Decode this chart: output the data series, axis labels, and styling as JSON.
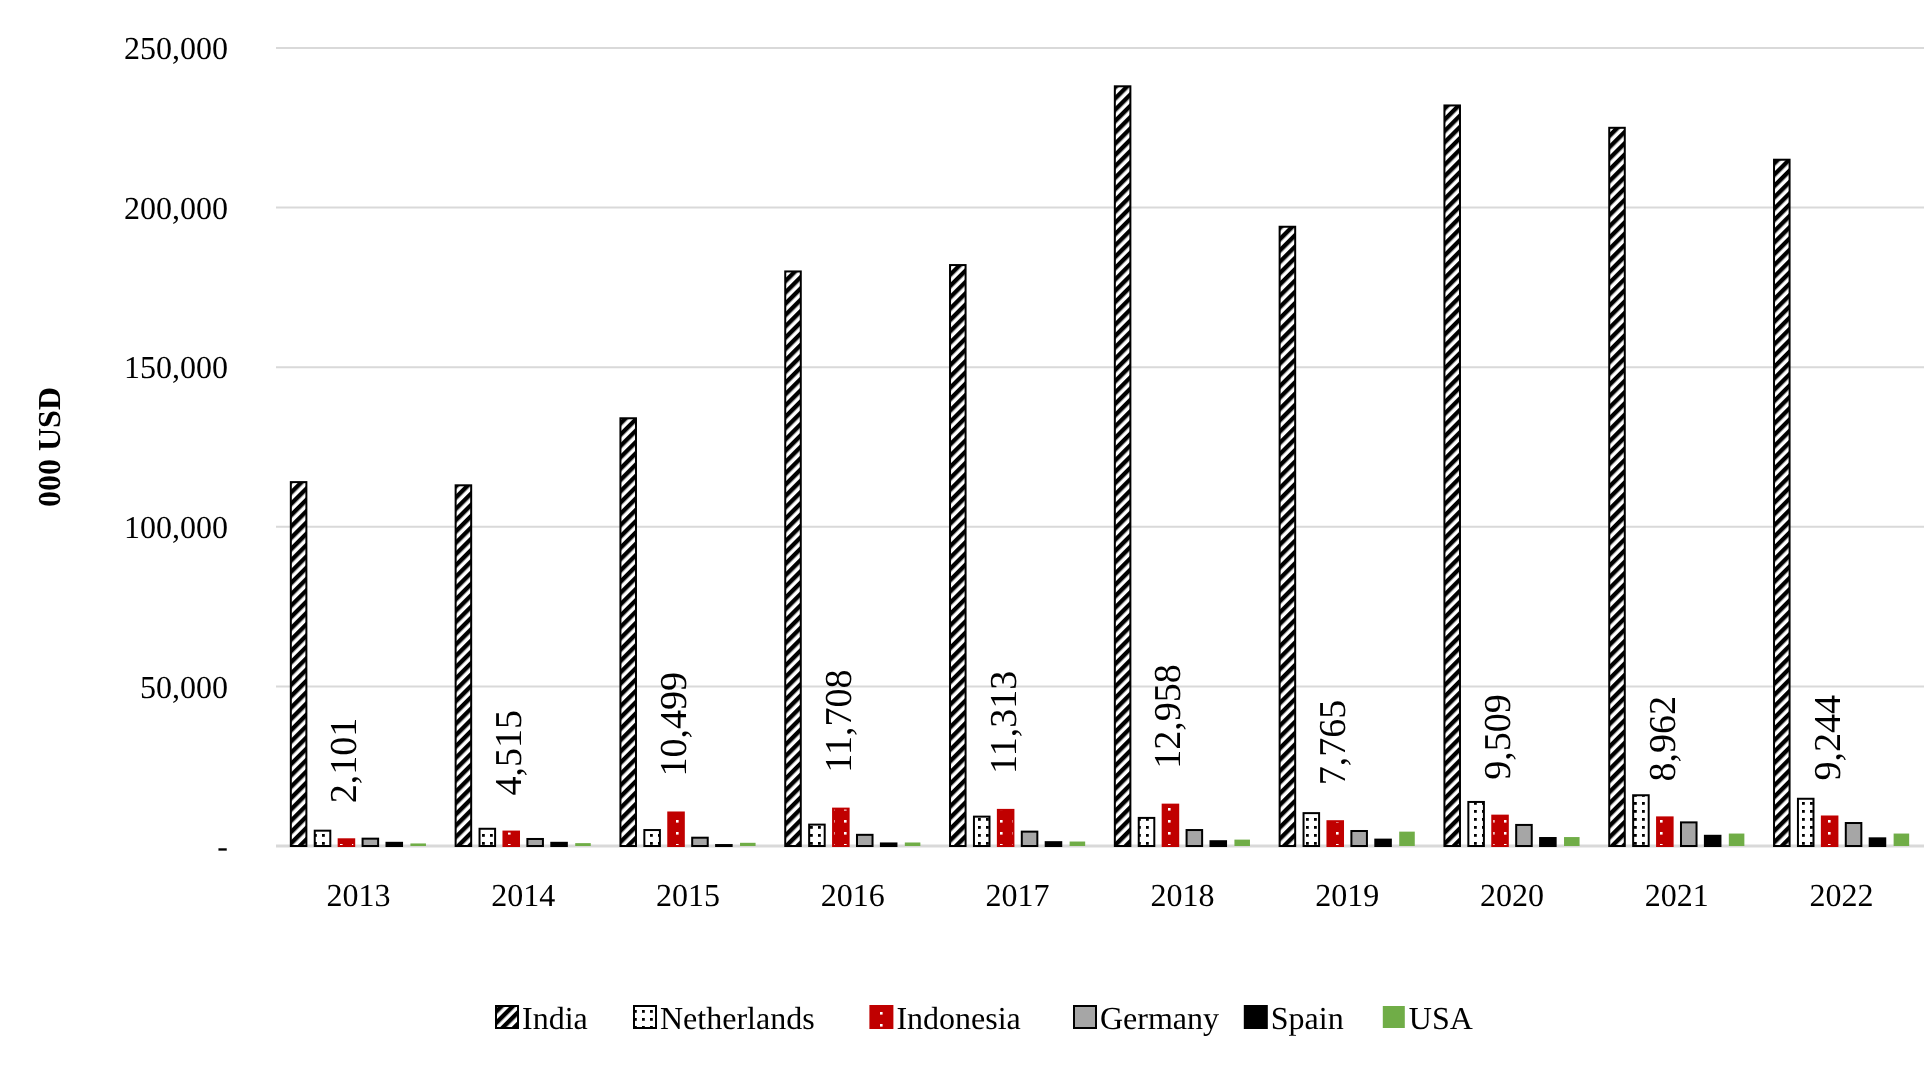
{
  "chart_data": {
    "type": "bar",
    "ylabel": "000 USD",
    "categories": [
      "2013",
      "2014",
      "2015",
      "2016",
      "2017",
      "2018",
      "2019",
      "2020",
      "2021",
      "2022"
    ],
    "series": [
      {
        "name": "India",
        "color": "#000000",
        "values": [
          114000,
          113000,
          134000,
          180000,
          182000,
          238000,
          194000,
          232000,
          225000,
          215000
        ]
      },
      {
        "name": "Netherlands",
        "color": "#000000",
        "values": [
          4800,
          5400,
          5000,
          6700,
          9200,
          8800,
          10300,
          13800,
          15900,
          14800
        ]
      },
      {
        "name": "Indonesia",
        "color": "#c00000",
        "values": [
          2101,
          4515,
          10499,
          11708,
          11313,
          12958,
          7765,
          9509,
          8962,
          9244
        ],
        "value_labels": [
          "2,101",
          "4,515",
          "10,499",
          "11,708",
          "11,313",
          "12,958",
          "7,765",
          "9,509",
          "8,962",
          "9,244"
        ]
      },
      {
        "name": "Germany",
        "color": "#a6a6a6",
        "values": [
          2300,
          2200,
          2600,
          3500,
          4500,
          5000,
          4700,
          6600,
          7400,
          7200
        ]
      },
      {
        "name": "Spain",
        "color": "#000000",
        "values": [
          1000,
          1000,
          300,
          800,
          1200,
          1500,
          2000,
          2500,
          3200,
          2400
        ]
      },
      {
        "name": "USA",
        "color": "#70ad47",
        "values": [
          800,
          900,
          1000,
          1100,
          1400,
          2000,
          4500,
          2800,
          3900,
          3900
        ]
      }
    ],
    "ylim": [
      0,
      250000
    ],
    "yticks": [
      {
        "value": 0,
        "label": "-"
      },
      {
        "value": 50000,
        "label": "50,000"
      },
      {
        "value": 100000,
        "label": "100,000"
      },
      {
        "value": 150000,
        "label": "150,000"
      },
      {
        "value": 200000,
        "label": "200,000"
      },
      {
        "value": 250000,
        "label": "250,000"
      }
    ],
    "grid": "y",
    "legend": "bottom"
  }
}
